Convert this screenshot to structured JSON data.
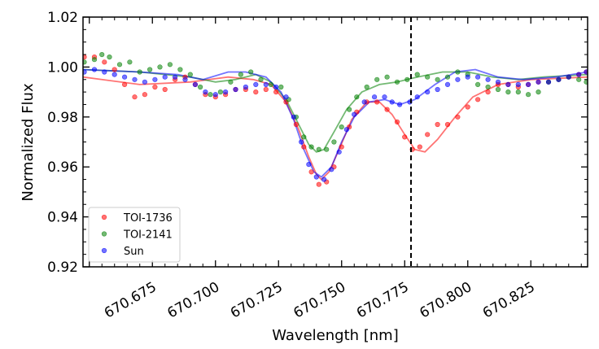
{
  "chart_data": {
    "type": "scatter",
    "title": "",
    "xlabel": "Wavelength [nm]",
    "ylabel": "Normalized Flux",
    "xlim": [
      670.6475,
      670.8475
    ],
    "ylim": [
      0.92,
      1.02
    ],
    "x_ticks": [
      670.675,
      670.7,
      670.725,
      670.75,
      670.775,
      670.8,
      670.825
    ],
    "x_tick_labels": [
      "670.675",
      "670.700",
      "670.725",
      "670.750",
      "670.775",
      "670.800",
      "670.825"
    ],
    "y_ticks": [
      0.92,
      0.94,
      0.96,
      0.98,
      1.0,
      1.02
    ],
    "y_tick_labels": [
      "0.92",
      "0.94",
      "0.96",
      "0.98",
      "1.00",
      "1.02"
    ],
    "vline": {
      "x": 670.7775,
      "style": "dashed",
      "color": "#000000"
    },
    "legend_position": "lower-left",
    "series": [
      {
        "name": "TOI-1736",
        "color": "#ff0000",
        "points": [
          [
            670.648,
            1.004
          ],
          [
            670.652,
            1.004
          ],
          [
            670.656,
            1.002
          ],
          [
            670.66,
            0.999
          ],
          [
            670.664,
            0.993
          ],
          [
            670.668,
            0.988
          ],
          [
            670.672,
            0.989
          ],
          [
            670.676,
            0.992
          ],
          [
            670.68,
            0.991
          ],
          [
            670.684,
            0.995
          ],
          [
            670.688,
            0.996
          ],
          [
            670.692,
            0.993
          ],
          [
            670.696,
            0.989
          ],
          [
            670.7,
            0.988
          ],
          [
            670.704,
            0.989
          ],
          [
            670.708,
            0.991
          ],
          [
            670.712,
            0.991
          ],
          [
            670.716,
            0.99
          ],
          [
            670.72,
            0.991
          ],
          [
            670.724,
            0.99
          ],
          [
            670.728,
            0.986
          ],
          [
            670.732,
            0.977
          ],
          [
            670.735,
            0.968
          ],
          [
            670.738,
            0.958
          ],
          [
            670.741,
            0.953
          ],
          [
            670.744,
            0.954
          ],
          [
            670.747,
            0.96
          ],
          [
            670.75,
            0.968
          ],
          [
            670.753,
            0.976
          ],
          [
            670.756,
            0.982
          ],
          [
            670.76,
            0.986
          ],
          [
            670.764,
            0.986
          ],
          [
            670.768,
            0.983
          ],
          [
            670.772,
            0.978
          ],
          [
            670.775,
            0.972
          ],
          [
            670.778,
            0.967
          ],
          [
            670.781,
            0.968
          ],
          [
            670.784,
            0.973
          ],
          [
            670.788,
            0.977
          ],
          [
            670.792,
            0.977
          ],
          [
            670.796,
            0.98
          ],
          [
            670.8,
            0.984
          ],
          [
            670.804,
            0.987
          ],
          [
            670.808,
            0.99
          ],
          [
            670.812,
            0.993
          ],
          [
            670.816,
            0.993
          ],
          [
            670.82,
            0.992
          ],
          [
            670.824,
            0.993
          ],
          [
            670.828,
            0.994
          ],
          [
            670.832,
            0.994
          ],
          [
            670.836,
            0.995
          ],
          [
            670.84,
            0.996
          ],
          [
            670.844,
            0.997
          ],
          [
            670.847,
            0.998
          ]
        ],
        "model": [
          [
            670.6475,
            0.996
          ],
          [
            670.67,
            0.993
          ],
          [
            670.69,
            0.994
          ],
          [
            670.705,
            0.996
          ],
          [
            670.715,
            0.995
          ],
          [
            670.722,
            0.993
          ],
          [
            670.728,
            0.986
          ],
          [
            670.733,
            0.975
          ],
          [
            670.737,
            0.964
          ],
          [
            670.74,
            0.957
          ],
          [
            670.742,
            0.955
          ],
          [
            670.745,
            0.958
          ],
          [
            670.749,
            0.967
          ],
          [
            670.754,
            0.979
          ],
          [
            670.76,
            0.986
          ],
          [
            670.765,
            0.986
          ],
          [
            670.77,
            0.981
          ],
          [
            670.775,
            0.973
          ],
          [
            670.779,
            0.967
          ],
          [
            670.783,
            0.966
          ],
          [
            670.788,
            0.971
          ],
          [
            670.795,
            0.98
          ],
          [
            670.802,
            0.988
          ],
          [
            670.812,
            0.993
          ],
          [
            670.825,
            0.995
          ],
          [
            670.8475,
            0.996
          ]
        ]
      },
      {
        "name": "TOI-2141",
        "color": "#008000",
        "points": [
          [
            670.648,
            1.002
          ],
          [
            670.652,
            1.003
          ],
          [
            670.655,
            1.005
          ],
          [
            670.658,
            1.004
          ],
          [
            670.662,
            1.001
          ],
          [
            670.666,
            1.002
          ],
          [
            670.67,
            0.998
          ],
          [
            670.674,
            0.999
          ],
          [
            670.678,
            1.0
          ],
          [
            670.682,
            1.001
          ],
          [
            670.686,
            0.999
          ],
          [
            670.69,
            0.997
          ],
          [
            670.694,
            0.992
          ],
          [
            670.698,
            0.989
          ],
          [
            670.702,
            0.99
          ],
          [
            670.706,
            0.994
          ],
          [
            670.71,
            0.997
          ],
          [
            670.714,
            0.998
          ],
          [
            670.718,
            0.995
          ],
          [
            670.722,
            0.993
          ],
          [
            670.726,
            0.992
          ],
          [
            670.729,
            0.987
          ],
          [
            670.732,
            0.98
          ],
          [
            670.735,
            0.972
          ],
          [
            670.738,
            0.968
          ],
          [
            670.741,
            0.967
          ],
          [
            670.744,
            0.967
          ],
          [
            670.747,
            0.97
          ],
          [
            670.75,
            0.976
          ],
          [
            670.753,
            0.983
          ],
          [
            670.756,
            0.988
          ],
          [
            670.76,
            0.992
          ],
          [
            670.764,
            0.995
          ],
          [
            670.768,
            0.996
          ],
          [
            670.772,
            0.994
          ],
          [
            670.776,
            0.995
          ],
          [
            670.78,
            0.997
          ],
          [
            670.784,
            0.996
          ],
          [
            670.788,
            0.995
          ],
          [
            670.792,
            0.996
          ],
          [
            670.796,
            0.998
          ],
          [
            670.8,
            0.997
          ],
          [
            670.804,
            0.993
          ],
          [
            670.808,
            0.992
          ],
          [
            670.812,
            0.991
          ],
          [
            670.816,
            0.99
          ],
          [
            670.82,
            0.99
          ],
          [
            670.824,
            0.989
          ],
          [
            670.828,
            0.99
          ],
          [
            670.832,
            0.994
          ],
          [
            670.836,
            0.995
          ],
          [
            670.84,
            0.996
          ],
          [
            670.844,
            0.995
          ],
          [
            670.847,
            0.994
          ]
        ],
        "model": [
          [
            670.6475,
            0.999
          ],
          [
            670.67,
            0.998
          ],
          [
            670.69,
            0.996
          ],
          [
            670.7,
            0.994
          ],
          [
            670.708,
            0.995
          ],
          [
            670.716,
            0.997
          ],
          [
            670.722,
            0.994
          ],
          [
            670.728,
            0.987
          ],
          [
            670.733,
            0.977
          ],
          [
            670.737,
            0.969
          ],
          [
            670.74,
            0.966
          ],
          [
            670.743,
            0.967
          ],
          [
            670.747,
            0.974
          ],
          [
            670.752,
            0.983
          ],
          [
            670.758,
            0.99
          ],
          [
            670.765,
            0.993
          ],
          [
            670.772,
            0.994
          ],
          [
            670.78,
            0.996
          ],
          [
            670.79,
            0.998
          ],
          [
            670.8,
            0.998
          ],
          [
            670.81,
            0.996
          ],
          [
            670.82,
            0.995
          ],
          [
            670.83,
            0.996
          ],
          [
            670.8475,
            0.997
          ]
        ]
      },
      {
        "name": "Sun",
        "color": "#0000ff",
        "points": [
          [
            670.648,
            0.998
          ],
          [
            670.652,
            0.999
          ],
          [
            670.656,
            0.998
          ],
          [
            670.66,
            0.997
          ],
          [
            670.664,
            0.996
          ],
          [
            670.668,
            0.995
          ],
          [
            670.672,
            0.994
          ],
          [
            670.676,
            0.995
          ],
          [
            670.68,
            0.996
          ],
          [
            670.684,
            0.996
          ],
          [
            670.688,
            0.995
          ],
          [
            670.692,
            0.993
          ],
          [
            670.696,
            0.99
          ],
          [
            670.7,
            0.989
          ],
          [
            670.704,
            0.99
          ],
          [
            670.708,
            0.991
          ],
          [
            670.712,
            0.992
          ],
          [
            670.716,
            0.993
          ],
          [
            670.72,
            0.993
          ],
          [
            670.724,
            0.992
          ],
          [
            670.728,
            0.988
          ],
          [
            670.731,
            0.98
          ],
          [
            670.734,
            0.97
          ],
          [
            670.737,
            0.961
          ],
          [
            670.74,
            0.956
          ],
          [
            670.743,
            0.955
          ],
          [
            670.746,
            0.959
          ],
          [
            670.749,
            0.966
          ],
          [
            670.752,
            0.975
          ],
          [
            670.755,
            0.981
          ],
          [
            670.759,
            0.986
          ],
          [
            670.763,
            0.988
          ],
          [
            670.767,
            0.988
          ],
          [
            670.77,
            0.986
          ],
          [
            670.773,
            0.985
          ],
          [
            670.777,
            0.986
          ],
          [
            670.78,
            0.988
          ],
          [
            670.784,
            0.99
          ],
          [
            670.788,
            0.991
          ],
          [
            670.792,
            0.993
          ],
          [
            670.796,
            0.995
          ],
          [
            670.8,
            0.996
          ],
          [
            670.804,
            0.996
          ],
          [
            670.808,
            0.995
          ],
          [
            670.812,
            0.994
          ],
          [
            670.816,
            0.993
          ],
          [
            670.82,
            0.993
          ],
          [
            670.824,
            0.993
          ],
          [
            670.828,
            0.994
          ],
          [
            670.832,
            0.994
          ],
          [
            670.836,
            0.995
          ],
          [
            670.84,
            0.996
          ],
          [
            670.844,
            0.997
          ],
          [
            670.847,
            0.998
          ]
        ],
        "model": [
          [
            670.6475,
            0.999
          ],
          [
            670.67,
            0.998
          ],
          [
            670.685,
            0.997
          ],
          [
            670.695,
            0.995
          ],
          [
            670.705,
            0.998
          ],
          [
            670.712,
            0.998
          ],
          [
            670.72,
            0.996
          ],
          [
            670.726,
            0.99
          ],
          [
            670.731,
            0.979
          ],
          [
            670.735,
            0.967
          ],
          [
            670.739,
            0.958
          ],
          [
            670.742,
            0.956
          ],
          [
            670.746,
            0.96
          ],
          [
            670.75,
            0.97
          ],
          [
            670.755,
            0.98
          ],
          [
            670.761,
            0.986
          ],
          [
            670.767,
            0.987
          ],
          [
            670.773,
            0.985
          ],
          [
            670.779,
            0.987
          ],
          [
            670.787,
            0.993
          ],
          [
            670.795,
            0.998
          ],
          [
            670.803,
            0.999
          ],
          [
            670.812,
            0.996
          ],
          [
            670.822,
            0.995
          ],
          [
            670.835,
            0.996
          ],
          [
            670.8475,
            0.998
          ]
        ]
      }
    ]
  }
}
